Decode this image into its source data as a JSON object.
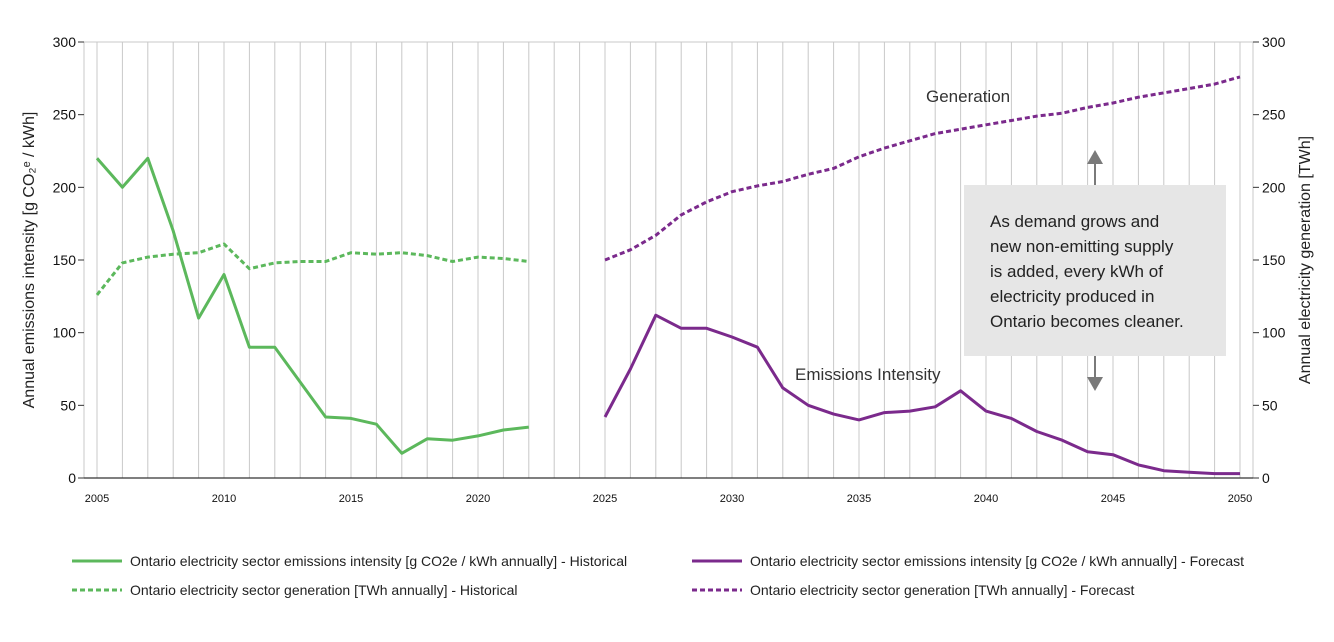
{
  "chart_data": {
    "type": "line",
    "x_range": [
      2005,
      2050
    ],
    "x_ticks": [
      "2005",
      "2010",
      "2015",
      "2020",
      "2025",
      "2030",
      "2035",
      "2040",
      "2045",
      "2050"
    ],
    "y_left": {
      "label": "Annual emissions intensity [g CO₂ᵉ / kWh]",
      "range": [
        0,
        300
      ],
      "ticks": [
        "0",
        "50",
        "100",
        "150",
        "200",
        "250",
        "300"
      ]
    },
    "y_right": {
      "label": "Annual electricity generation [TWh]",
      "range": [
        0,
        300
      ],
      "ticks": [
        "0",
        "50",
        "100",
        "150",
        "200",
        "250",
        "300"
      ]
    },
    "grid": {
      "vertical": true,
      "horizontal": false
    },
    "colors": {
      "historical": "#5cb85c",
      "forecast": "#7b2a8c",
      "callout_bg": "#e6e6e6",
      "arrow": "#7a7a7a"
    },
    "series": [
      {
        "name": "Ontario electricity sector emissions intensity [g CO2e / kWh annually] - Historical",
        "style": "solid",
        "color": "#5cb85c",
        "x": [
          2005,
          2006,
          2007,
          2008,
          2009,
          2010,
          2011,
          2012,
          2013,
          2014,
          2015,
          2016,
          2017,
          2018,
          2019,
          2020,
          2021,
          2022
        ],
        "y": [
          220,
          200,
          220,
          170,
          110,
          140,
          90,
          90,
          66,
          42,
          41,
          37,
          17,
          27,
          26,
          29,
          33,
          35
        ]
      },
      {
        "name": "Ontario electricity sector generation [TWh annually] - Historical",
        "style": "dotted",
        "color": "#5cb85c",
        "x": [
          2005,
          2006,
          2007,
          2008,
          2009,
          2010,
          2011,
          2012,
          2013,
          2014,
          2015,
          2016,
          2017,
          2018,
          2019,
          2020,
          2021,
          2022
        ],
        "y": [
          126,
          148,
          152,
          154,
          155,
          161,
          144,
          148,
          149,
          149,
          155,
          154,
          155,
          153,
          149,
          152,
          151,
          149
        ]
      },
      {
        "name": "Ontario electricity sector emissions intensity [g CO2e / kWh annually] - Forecast",
        "style": "solid",
        "color": "#7b2a8c",
        "x": [
          2025,
          2026,
          2027,
          2028,
          2029,
          2030,
          2031,
          2032,
          2033,
          2034,
          2035,
          2036,
          2037,
          2038,
          2039,
          2040,
          2041,
          2042,
          2043,
          2044,
          2045,
          2046,
          2047,
          2048,
          2049,
          2050
        ],
        "y": [
          42,
          75,
          112,
          103,
          103,
          97,
          90,
          62,
          50,
          44,
          40,
          45,
          46,
          49,
          60,
          46,
          41,
          32,
          26,
          18,
          16,
          9,
          5,
          4,
          3,
          3
        ]
      },
      {
        "name": "Ontario electricity sector generation [TWh annually] - Forecast",
        "style": "dotted",
        "color": "#7b2a8c",
        "x": [
          2025,
          2026,
          2027,
          2028,
          2029,
          2030,
          2031,
          2032,
          2033,
          2034,
          2035,
          2036,
          2037,
          2038,
          2039,
          2040,
          2041,
          2042,
          2043,
          2044,
          2045,
          2046,
          2047,
          2048,
          2049,
          2050
        ],
        "y": [
          150,
          157,
          167,
          181,
          190,
          197,
          201,
          204,
          209,
          213,
          221,
          227,
          232,
          237,
          240,
          243,
          246,
          249,
          251,
          255,
          258,
          262,
          265,
          268,
          271,
          276
        ]
      }
    ],
    "annotations": {
      "generation": "Generation",
      "emissions": "Emissions Intensity"
    },
    "callout": {
      "lines": [
        "As demand grows and",
        "new non-emitting supply",
        "is added, every kWh of",
        "electricity produced in",
        "Ontario becomes cleaner."
      ]
    }
  }
}
